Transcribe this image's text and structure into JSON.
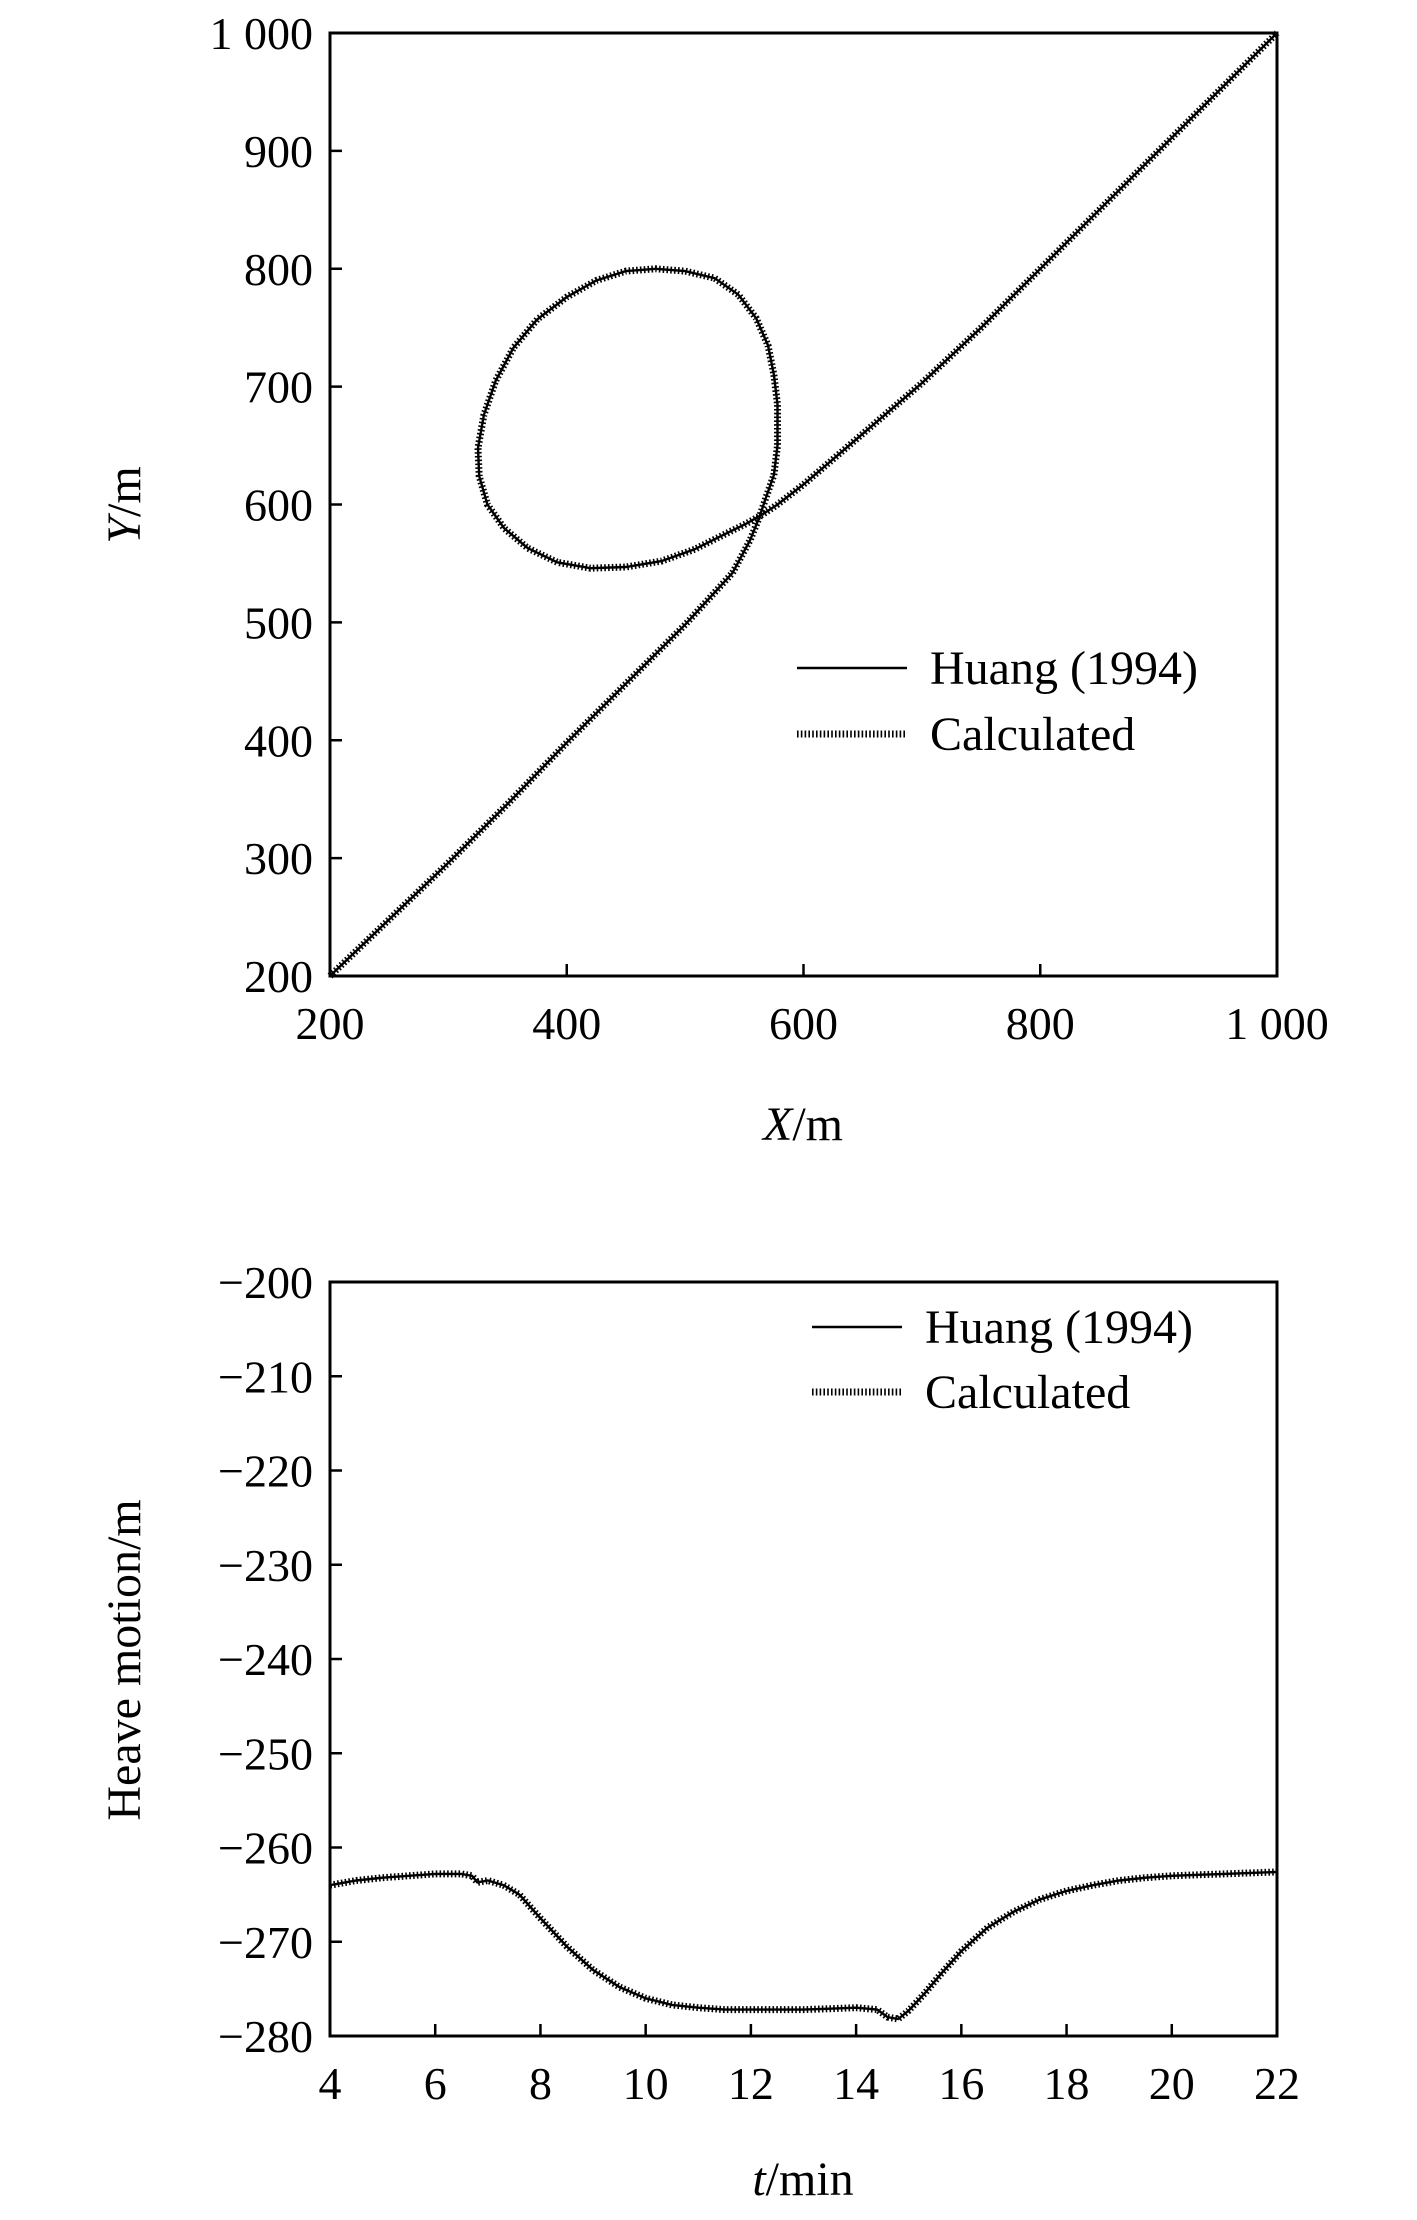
{
  "chart_data": [
    {
      "type": "line",
      "xlabel_italic": "X",
      "xlabel_unit": "/m",
      "ylabel_italic": "Y",
      "ylabel_unit": "/m",
      "xlim": [
        200,
        1000
      ],
      "ylim": [
        200,
        1000
      ],
      "xticks": [
        200,
        400,
        600,
        800,
        1000
      ],
      "yticks": [
        200,
        300,
        400,
        500,
        600,
        700,
        800,
        900,
        1000
      ],
      "xtick_labels": [
        "200",
        "400",
        "600",
        "800",
        "1 000"
      ],
      "ytick_labels": [
        "200",
        "300",
        "400",
        "500",
        "600",
        "700",
        "800",
        "900",
        "1 000"
      ],
      "grid": false,
      "legend_position": "lower-right",
      "series": [
        {
          "name": "Huang (1994)",
          "style": "solid",
          "x": [
            200,
            250,
            300,
            350,
            400,
            450,
            500,
            540,
            555,
            563,
            568,
            575,
            578,
            578,
            575,
            570,
            560,
            545,
            525,
            500,
            475,
            450,
            425,
            400,
            375,
            355,
            340,
            330,
            325,
            326,
            333,
            347,
            367,
            392,
            420,
            450,
            480,
            508,
            532,
            552,
            566,
            575,
            578,
            600,
            650,
            700,
            750,
            800,
            850,
            900,
            950,
            1000
          ],
          "y": [
            200,
            248,
            296,
            346,
            398,
            448,
            498,
            542,
            570,
            590,
            605,
            625,
            650,
            685,
            710,
            735,
            758,
            778,
            792,
            798,
            800,
            798,
            790,
            776,
            757,
            733,
            705,
            676,
            648,
            624,
            600,
            580,
            563,
            551,
            546,
            547,
            552,
            562,
            574,
            584,
            592,
            598,
            600,
            617,
            660,
            703,
            750,
            800,
            850,
            900,
            950,
            1000
          ]
        },
        {
          "name": "Calculated",
          "style": "dotted",
          "x": [
            200,
            250,
            300,
            350,
            400,
            450,
            500,
            540,
            555,
            563,
            568,
            575,
            578,
            578,
            575,
            570,
            560,
            545,
            525,
            500,
            475,
            450,
            425,
            400,
            375,
            355,
            340,
            330,
            325,
            326,
            333,
            347,
            367,
            392,
            420,
            450,
            480,
            508,
            532,
            552,
            566,
            575,
            578,
            600,
            650,
            700,
            750,
            800,
            850,
            900,
            950,
            1000
          ],
          "y": [
            200,
            248,
            296,
            346,
            398,
            448,
            498,
            542,
            570,
            590,
            605,
            625,
            650,
            685,
            710,
            735,
            758,
            778,
            792,
            798,
            800,
            798,
            790,
            776,
            757,
            733,
            705,
            676,
            648,
            624,
            600,
            580,
            563,
            551,
            546,
            547,
            552,
            562,
            574,
            584,
            592,
            598,
            600,
            617,
            660,
            703,
            750,
            800,
            850,
            900,
            950,
            1000
          ]
        }
      ]
    },
    {
      "type": "line",
      "xlabel_italic": "t",
      "xlabel_unit": "/min",
      "ylabel": "Heave motion/m",
      "xlim": [
        4,
        22
      ],
      "ylim": [
        -280,
        -200
      ],
      "xticks": [
        4,
        6,
        8,
        10,
        12,
        14,
        16,
        18,
        20,
        22
      ],
      "yticks": [
        -200,
        -210,
        -220,
        -230,
        -240,
        -250,
        -260,
        -270,
        -280
      ],
      "xtick_labels": [
        "4",
        "6",
        "8",
        "10",
        "12",
        "14",
        "16",
        "18",
        "20",
        "22"
      ],
      "ytick_labels": [
        "−200",
        "−210",
        "−220",
        "−230",
        "−240",
        "−250",
        "−260",
        "−270",
        "−280"
      ],
      "grid": false,
      "legend_position": "top-right",
      "series": [
        {
          "name": "Huang (1994)",
          "style": "solid",
          "x": [
            4,
            4.5,
            5,
            5.5,
            6,
            6.5,
            6.7,
            6.8,
            7,
            7.3,
            7.6,
            8,
            8.5,
            9,
            9.5,
            10,
            10.5,
            11,
            11.5,
            12,
            12.5,
            13,
            13.5,
            14,
            14.4,
            14.6,
            14.8,
            15,
            15.3,
            15.6,
            16,
            16.5,
            17,
            17.5,
            18,
            18.5,
            19,
            19.5,
            20,
            20.5,
            21,
            21.5,
            22
          ],
          "y": [
            -264,
            -263.5,
            -263.2,
            -263,
            -262.8,
            -262.8,
            -263,
            -263.7,
            -263.5,
            -264,
            -265,
            -267.5,
            -270.5,
            -273,
            -274.8,
            -276,
            -276.7,
            -277,
            -277.2,
            -277.2,
            -277.2,
            -277.2,
            -277.1,
            -277,
            -277.2,
            -278,
            -278.2,
            -277.3,
            -275.5,
            -273.5,
            -271,
            -268.5,
            -266.8,
            -265.5,
            -264.6,
            -264,
            -263.5,
            -263.2,
            -263,
            -262.9,
            -262.8,
            -262.7,
            -262.6
          ]
        },
        {
          "name": "Calculated",
          "style": "dotted",
          "x": [
            4,
            4.5,
            5,
            5.5,
            6,
            6.5,
            6.7,
            6.8,
            7,
            7.3,
            7.6,
            8,
            8.5,
            9,
            9.5,
            10,
            10.5,
            11,
            11.5,
            12,
            12.5,
            13,
            13.5,
            14,
            14.4,
            14.6,
            14.8,
            15,
            15.3,
            15.6,
            16,
            16.5,
            17,
            17.5,
            18,
            18.5,
            19,
            19.5,
            20,
            20.5,
            21,
            21.5,
            22
          ],
          "y": [
            -264,
            -263.5,
            -263.2,
            -263,
            -262.8,
            -262.8,
            -263,
            -263.7,
            -263.5,
            -264,
            -265,
            -267.5,
            -270.5,
            -273,
            -274.8,
            -276,
            -276.7,
            -277,
            -277.2,
            -277.2,
            -277.2,
            -277.2,
            -277.1,
            -277,
            -277.2,
            -278,
            -278.2,
            -277.3,
            -275.5,
            -273.5,
            -271,
            -268.5,
            -266.8,
            -265.5,
            -264.6,
            -264,
            -263.5,
            -263.2,
            -263,
            -262.9,
            -262.8,
            -262.7,
            -262.6
          ]
        }
      ]
    }
  ]
}
